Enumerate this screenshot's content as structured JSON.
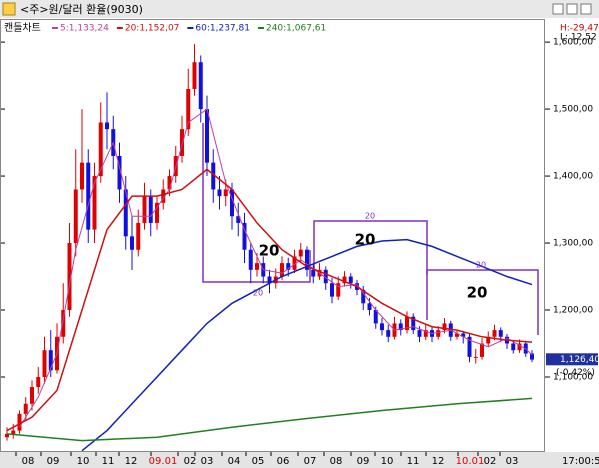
{
  "chart_data": {
    "type": "candlestick",
    "title": "<주>원/달러 환율(9030)",
    "chart_label": "캔들차트",
    "high_label": "H:-29,47",
    "low_label": "L: 12,52",
    "time_label": "17:00:59",
    "up_color": "#e00000",
    "down_color": "#1010e0",
    "ylim": [
      988,
      1633
    ],
    "yticks": [
      {
        "value": 1100,
        "label": "1,100,00"
      },
      {
        "value": 1200,
        "label": "1,200,00"
      },
      {
        "value": 1300,
        "label": "1,300,00"
      },
      {
        "value": 1400,
        "label": "1,400,00"
      },
      {
        "value": 1500,
        "label": "1,500,00"
      },
      {
        "value": 1600,
        "label": "1,600,00"
      }
    ],
    "x_labels": [
      "08",
      "09",
      "10",
      "11",
      "12",
      "09.01",
      "02",
      "03",
      "04",
      "05",
      "06",
      "07",
      "08",
      "09",
      "10",
      "11",
      "12",
      "10.01",
      "02",
      "03"
    ],
    "last": {
      "value": 1126.4,
      "label": "1,126,40",
      "change": "(-0.42%)"
    },
    "annotations": [
      "20",
      "20",
      "20",
      "20",
      "20",
      "20"
    ],
    "candles": [
      [
        1010,
        1025,
        1005,
        1015
      ],
      [
        1015,
        1030,
        1008,
        1020
      ],
      [
        1020,
        1050,
        1015,
        1045
      ],
      [
        1045,
        1070,
        1035,
        1060
      ],
      [
        1060,
        1095,
        1050,
        1085
      ],
      [
        1085,
        1115,
        1075,
        1100
      ],
      [
        1100,
        1160,
        1090,
        1140
      ],
      [
        1140,
        1170,
        1100,
        1110
      ],
      [
        1110,
        1180,
        1105,
        1160
      ],
      [
        1160,
        1240,
        1150,
        1200
      ],
      [
        1200,
        1330,
        1190,
        1300
      ],
      [
        1300,
        1440,
        1280,
        1380
      ],
      [
        1380,
        1500,
        1360,
        1420
      ],
      [
        1420,
        1440,
        1300,
        1320
      ],
      [
        1320,
        1420,
        1300,
        1400
      ],
      [
        1400,
        1510,
        1390,
        1480
      ],
      [
        1480,
        1525,
        1440,
        1470
      ],
      [
        1470,
        1490,
        1410,
        1430
      ],
      [
        1430,
        1450,
        1360,
        1380
      ],
      [
        1380,
        1400,
        1290,
        1310
      ],
      [
        1310,
        1340,
        1260,
        1290
      ],
      [
        1290,
        1350,
        1280,
        1330
      ],
      [
        1330,
        1390,
        1320,
        1370
      ],
      [
        1370,
        1380,
        1310,
        1330
      ],
      [
        1330,
        1370,
        1320,
        1360
      ],
      [
        1360,
        1395,
        1350,
        1380
      ],
      [
        1380,
        1410,
        1370,
        1400
      ],
      [
        1400,
        1445,
        1390,
        1430
      ],
      [
        1430,
        1490,
        1420,
        1470
      ],
      [
        1470,
        1560,
        1460,
        1530
      ],
      [
        1530,
        1597,
        1520,
        1570
      ],
      [
        1570,
        1580,
        1480,
        1500
      ],
      [
        1500,
        1520,
        1400,
        1420
      ],
      [
        1420,
        1440,
        1360,
        1380
      ],
      [
        1380,
        1400,
        1350,
        1370
      ],
      [
        1370,
        1395,
        1355,
        1380
      ],
      [
        1380,
        1390,
        1320,
        1340
      ],
      [
        1340,
        1360,
        1310,
        1330
      ],
      [
        1330,
        1345,
        1270,
        1290
      ],
      [
        1290,
        1300,
        1240,
        1260
      ],
      [
        1260,
        1285,
        1250,
        1270
      ],
      [
        1270,
        1280,
        1240,
        1250
      ],
      [
        1250,
        1260,
        1225,
        1240
      ],
      [
        1240,
        1262,
        1232,
        1250
      ],
      [
        1250,
        1280,
        1245,
        1270
      ],
      [
        1270,
        1278,
        1250,
        1260
      ],
      [
        1260,
        1290,
        1255,
        1280
      ],
      [
        1280,
        1300,
        1270,
        1290
      ],
      [
        1290,
        1295,
        1250,
        1260
      ],
      [
        1260,
        1268,
        1240,
        1250
      ],
      [
        1250,
        1270,
        1245,
        1260
      ],
      [
        1260,
        1265,
        1230,
        1240
      ],
      [
        1240,
        1248,
        1210,
        1220
      ],
      [
        1220,
        1250,
        1215,
        1240
      ],
      [
        1240,
        1258,
        1235,
        1250
      ],
      [
        1250,
        1255,
        1232,
        1240
      ],
      [
        1240,
        1245,
        1222,
        1230
      ],
      [
        1230,
        1236,
        1200,
        1210
      ],
      [
        1210,
        1218,
        1192,
        1200
      ],
      [
        1200,
        1205,
        1172,
        1180
      ],
      [
        1180,
        1188,
        1162,
        1170
      ],
      [
        1170,
        1178,
        1152,
        1160
      ],
      [
        1160,
        1190,
        1156,
        1180
      ],
      [
        1180,
        1186,
        1162,
        1170
      ],
      [
        1170,
        1198,
        1165,
        1190
      ],
      [
        1190,
        1195,
        1164,
        1170
      ],
      [
        1170,
        1176,
        1152,
        1160
      ],
      [
        1160,
        1178,
        1155,
        1170
      ],
      [
        1170,
        1175,
        1152,
        1160
      ],
      [
        1160,
        1176,
        1156,
        1170
      ],
      [
        1170,
        1188,
        1165,
        1180
      ],
      [
        1180,
        1184,
        1154,
        1160
      ],
      [
        1160,
        1170,
        1156,
        1165
      ],
      [
        1165,
        1168,
        1150,
        1160
      ],
      [
        1160,
        1164,
        1122,
        1130
      ],
      [
        1130,
        1142,
        1120,
        1130
      ],
      [
        1130,
        1158,
        1126,
        1150
      ],
      [
        1150,
        1168,
        1145,
        1160
      ],
      [
        1160,
        1178,
        1155,
        1170
      ],
      [
        1170,
        1174,
        1152,
        1160
      ],
      [
        1160,
        1164,
        1142,
        1150
      ],
      [
        1150,
        1153,
        1135,
        1140
      ],
      [
        1140,
        1156,
        1136,
        1150
      ],
      [
        1150,
        1152,
        1130,
        1135
      ],
      [
        1135,
        1140,
        1122,
        1126
      ]
    ],
    "series": [
      {
        "name": "5:1,133,24",
        "color": "#c040a0",
        "x": [
          2,
          5,
          8,
          11,
          14,
          17,
          20,
          23,
          26,
          29,
          32,
          35,
          38,
          41,
          44,
          47,
          50,
          53,
          56,
          59,
          62,
          65,
          68,
          71,
          74,
          77,
          80,
          83,
          84
        ],
        "values": [
          1025,
          1070,
          1135,
          1290,
          1390,
          1450,
          1340,
          1340,
          1380,
          1480,
          1500,
          1390,
          1320,
          1260,
          1255,
          1275,
          1255,
          1235,
          1238,
          1200,
          1170,
          1175,
          1165,
          1170,
          1155,
          1145,
          1158,
          1142,
          1133
        ]
      },
      {
        "name": "20:1,152,07",
        "color": "#d01010",
        "x": [
          0,
          4,
          8,
          12,
          16,
          20,
          24,
          28,
          32,
          36,
          40,
          44,
          48,
          52,
          56,
          60,
          64,
          68,
          72,
          76,
          80,
          84
        ],
        "values": [
          1020,
          1040,
          1080,
          1200,
          1320,
          1370,
          1370,
          1380,
          1410,
          1380,
          1330,
          1290,
          1265,
          1250,
          1235,
          1210,
          1190,
          1175,
          1170,
          1160,
          1155,
          1152
        ]
      },
      {
        "name": "60:1,237,81",
        "color": "#1020c0",
        "x": [
          12,
          16,
          20,
          24,
          28,
          32,
          36,
          40,
          44,
          48,
          52,
          56,
          60,
          64,
          68,
          72,
          76,
          80,
          84
        ],
        "values": [
          990,
          1020,
          1060,
          1100,
          1140,
          1180,
          1210,
          1230,
          1250,
          1265,
          1280,
          1295,
          1303,
          1305,
          1295,
          1280,
          1265,
          1250,
          1238
        ]
      },
      {
        "name": "240:1,067,61",
        "color": "#208020",
        "x": [
          0,
          12,
          24,
          36,
          48,
          60,
          72,
          84
        ],
        "values": [
          1015,
          1005,
          1010,
          1025,
          1038,
          1050,
          1060,
          1068
        ]
      }
    ]
  }
}
